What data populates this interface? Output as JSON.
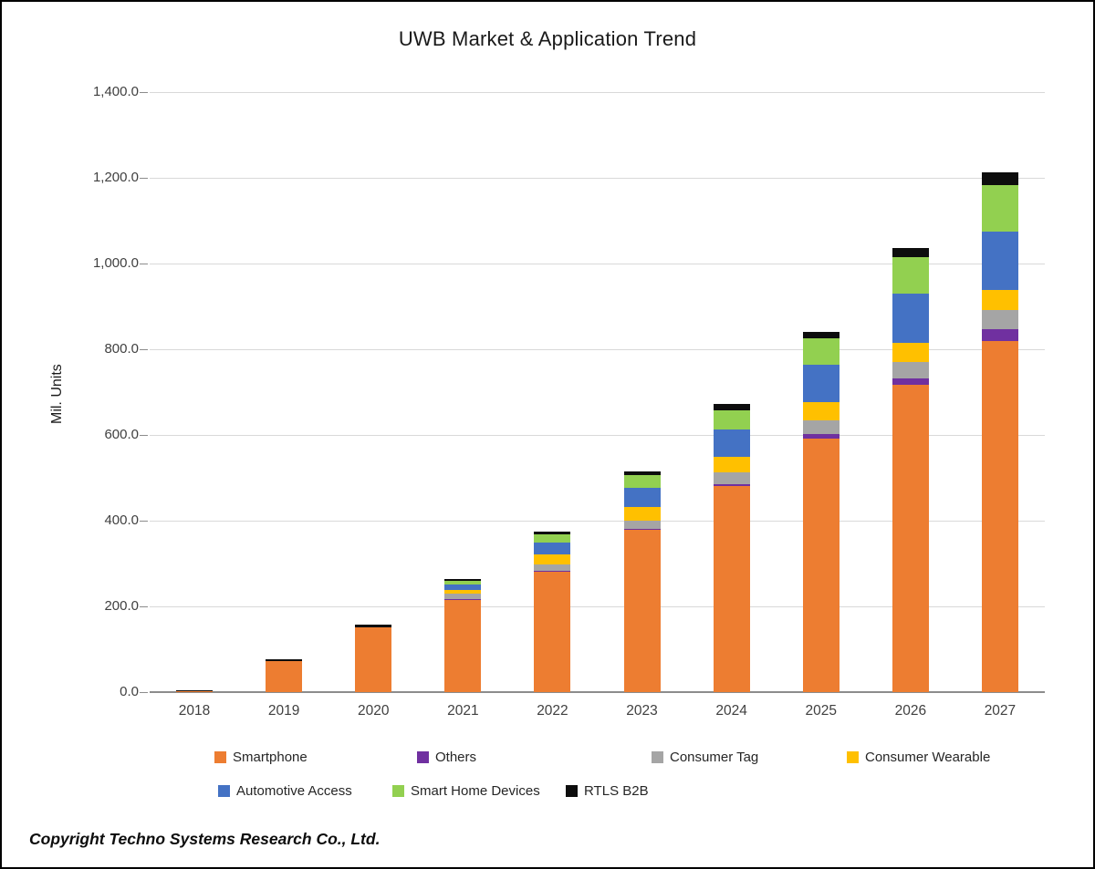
{
  "title": "UWB Market & Application Trend",
  "copyright": "Copyright Techno Systems Research Co., Ltd.",
  "y_axis": {
    "label": "Mil. Units",
    "tick_labels": [
      "1,400.0",
      "1,200.0",
      "1,000.0",
      "800.0",
      "600.0",
      "400.0",
      "200.0",
      "0.0"
    ]
  },
  "chart_data": {
    "type": "bar",
    "stacked": true,
    "title": "UWB Market & Application Trend",
    "ylabel": "Mil. Units",
    "xlabel": "",
    "ylim": [
      0,
      1400
    ],
    "y_step": 200,
    "grid": true,
    "legend_position": "bottom",
    "categories": [
      "2018",
      "2019",
      "2020",
      "2021",
      "2022",
      "2023",
      "2024",
      "2025",
      "2026",
      "2027"
    ],
    "series": [
      {
        "name": "Smartphone",
        "color": "#ED7D31",
        "values": [
          2,
          72,
          152,
          215,
          280,
          378,
          480,
          591,
          717,
          819
        ]
      },
      {
        "name": "Others",
        "color": "#7030A0",
        "values": [
          0,
          0,
          0,
          2,
          3,
          3,
          6,
          11,
          15,
          27
        ]
      },
      {
        "name": "Consumer Tag",
        "color": "#A5A5A5",
        "values": [
          0,
          0,
          0,
          12,
          15,
          20,
          26,
          32,
          38,
          45
        ]
      },
      {
        "name": "Consumer Wearable",
        "color": "#FFC000",
        "values": [
          0,
          0,
          0,
          10,
          23,
          30,
          36,
          42,
          45,
          47
        ]
      },
      {
        "name": "Automotive Access",
        "color": "#4472C4",
        "values": [
          0,
          0,
          0,
          13,
          28,
          45,
          65,
          87,
          115,
          136
        ]
      },
      {
        "name": "Smart Home Devices",
        "color": "#92D050",
        "values": [
          0,
          0,
          0,
          8,
          19,
          30,
          45,
          62,
          85,
          110
        ]
      },
      {
        "name": "RTLS B2B",
        "color": "#0D0D0D",
        "values": [
          3,
          4,
          6,
          4,
          6,
          9,
          14,
          16,
          21,
          28
        ]
      }
    ],
    "totals": [
      5,
      76,
      158,
      264,
      374,
      515,
      672,
      841,
      1036,
      1212
    ]
  },
  "legend": {
    "row1": [
      "Smartphone",
      "Others",
      "Consumer Tag",
      "Consumer Wearable"
    ],
    "row2": [
      "Automotive Access",
      "Smart Home Devices",
      "RTLS B2B"
    ]
  }
}
